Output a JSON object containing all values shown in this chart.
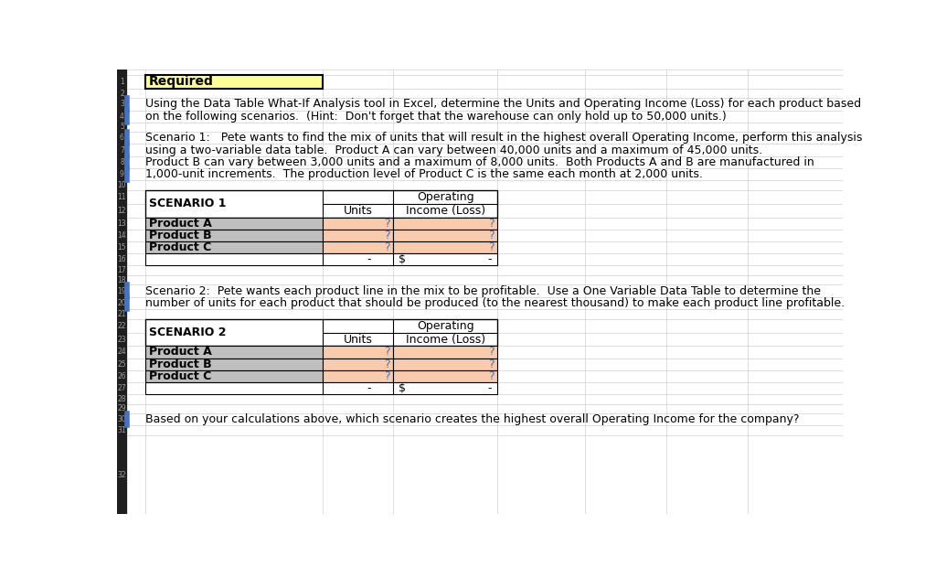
{
  "bg_color": "#ffffff",
  "grid_line_color": "#d0d0d0",
  "header_bg": "#ffff99",
  "header_text": "Required",
  "header_border": "#000000",
  "text_color": "#000000",
  "orange_cell": "#f8cbad",
  "gray_cell": "#bfbfbf",
  "white_cell": "#ffffff",
  "scenario1_header": "SCENARIO 1",
  "scenario2_header": "SCENARIO 2",
  "col_units": "Units",
  "col_op_income_line1": "Operating",
  "col_op_income_line2": "Income (Loss)",
  "products": [
    "Product A",
    "Product B",
    "Product C"
  ],
  "question_mark": "?",
  "question_color": "#4472c4",
  "total_dash": "-",
  "dollar_sign": "$",
  "para1_line1": "Using the Data Table What-If Analysis tool in Excel, determine the Units and Operating Income (Loss) for each product based",
  "para1_line2": "on the following scenarios.  (Hint:  Don't forget that the warehouse can only hold up to 50,000 units.)",
  "para2_line1": "Scenario 1:   Pete wants to find the mix of units that will result in the highest overall Operating Income, perform this analysis",
  "para2_line2": "using a two-variable data table.  Product A can vary between 40,000 units and a maximum of 45,000 units.",
  "para2_line3": "Product B can vary between 3,000 units and a maximum of 8,000 units.  Both Products A and B are manufactured in",
  "para2_line4": "1,000-unit increments.  The production level of Product C is the same each month at 2,000 units.",
  "para3_line1": "Scenario 2:  Pete wants each product line in the mix to be profitable.  Use a One Variable Data Table to determine the",
  "para3_line2": "number of units for each product that should be produced (to the nearest thousand) to make each product line profitable.",
  "para4": "Based on your calculations above, which scenario creates the highest overall Operating Income for the company?",
  "left_col_bg": "#1f1f1f",
  "row_num_color": "#c0c0c0",
  "blue_marker": "#4472c4",
  "font_size": 9,
  "font_size_header": 9.5
}
